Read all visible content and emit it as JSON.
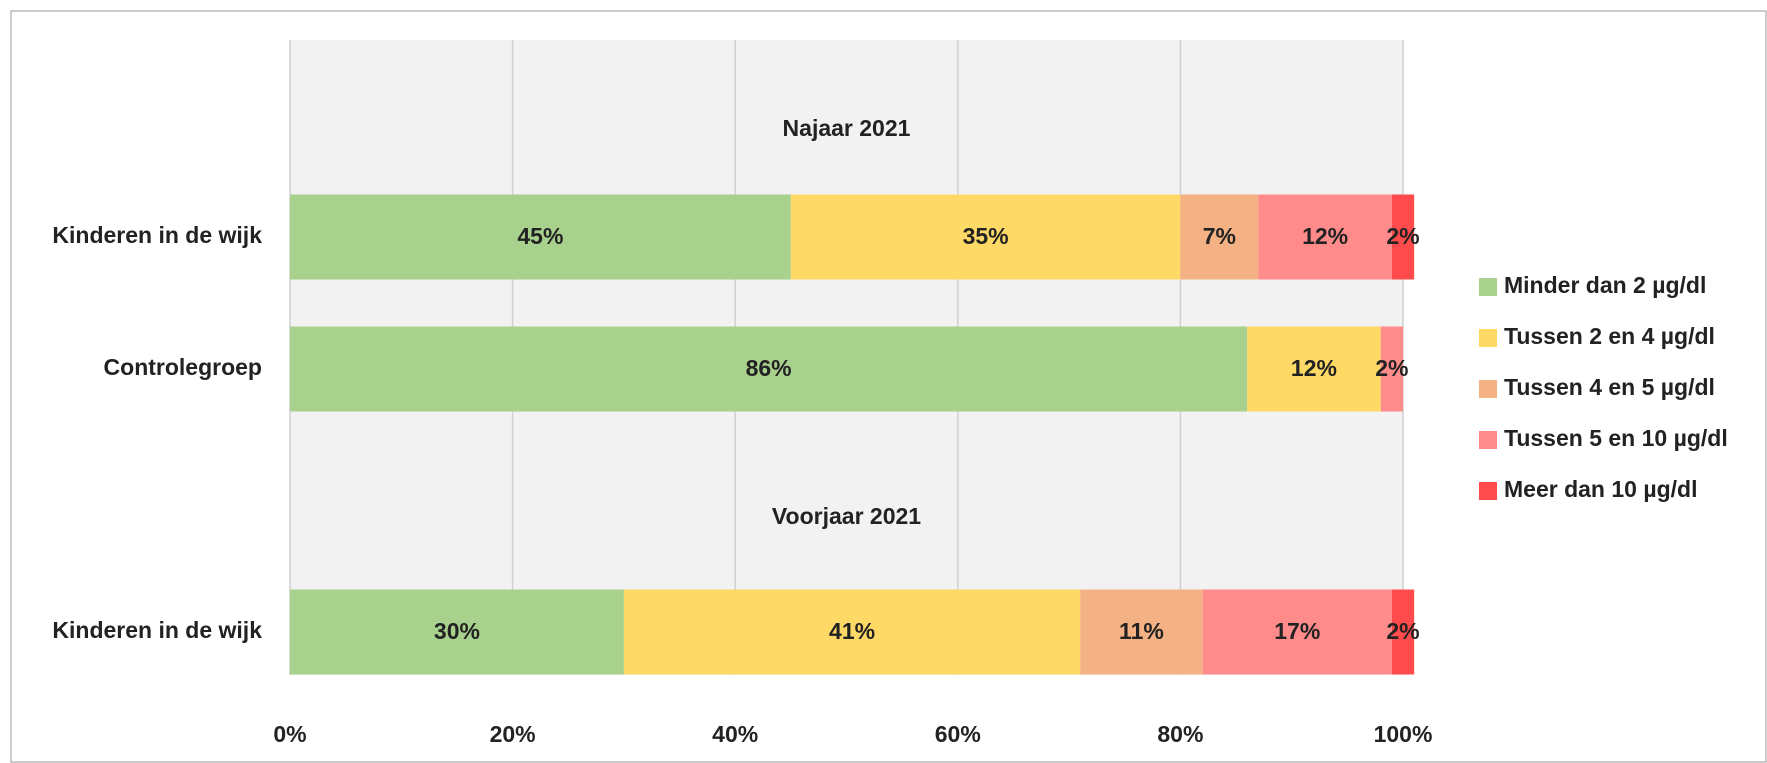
{
  "chart_data": {
    "type": "stacked-bar-horizontal",
    "categories": [
      "Kinderen in de wijk",
      "Controlegroep",
      "Kinderen in de wijk"
    ],
    "annotations": [
      "Najaar 2021",
      "Voorjaar 2021"
    ],
    "series": [
      {
        "name": "Minder dan 2 µg/dl",
        "color": "#a9d18e",
        "values": [
          45,
          86,
          30
        ],
        "value_labels": [
          "45%",
          "86%",
          "30%"
        ]
      },
      {
        "name": "Tussen 2 en 4 µg/dl",
        "color": "#ffd966",
        "values": [
          35,
          12,
          41
        ],
        "value_labels": [
          "35%",
          "12%",
          "41%"
        ]
      },
      {
        "name": "Tussen 4 en 5 µg/dl",
        "color": "#f4b183",
        "values": [
          7,
          null,
          11
        ],
        "value_labels": [
          "7%",
          null,
          "11%"
        ]
      },
      {
        "name": "Tussen 5 en 10 µg/dl",
        "color": "#ff8b8b",
        "values": [
          12,
          2,
          17
        ],
        "value_labels": [
          "12%",
          "2%",
          "17%"
        ]
      },
      {
        "name": "Meer dan 10 µg/dl",
        "color": "#ff4b4b",
        "values": [
          2,
          null,
          2
        ],
        "value_labels": [
          "2%",
          null,
          "2%"
        ]
      }
    ],
    "xlim": [
      0,
      100
    ],
    "xticks": [
      {
        "value": 0,
        "label": "0%"
      },
      {
        "value": 20,
        "label": "20%"
      },
      {
        "value": 40,
        "label": "40%"
      },
      {
        "value": 60,
        "label": "60%"
      },
      {
        "value": 80,
        "label": "80%"
      },
      {
        "value": 100,
        "label": "100%"
      }
    ],
    "grid": true,
    "legend": "right"
  }
}
